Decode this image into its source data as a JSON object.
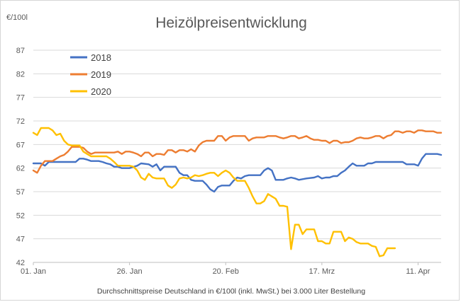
{
  "chart_data": {
    "type": "line",
    "title": "Heizölpreisentwicklung",
    "ylabel": "€/100l",
    "xlabel": "Durchschnittspreise Deutschland in €/100l (inkl. MwSt.) bei 3.000 Liter Bestellung",
    "ylim": [
      42,
      87
    ],
    "yticks": [
      42,
      47,
      52,
      57,
      62,
      67,
      72,
      77,
      82,
      87
    ],
    "xlim": [
      1,
      107
    ],
    "xticks": [
      {
        "day": 1,
        "label": "01. Jan"
      },
      {
        "day": 26,
        "label": "26. Jan"
      },
      {
        "day": 51,
        "label": "20. Feb"
      },
      {
        "day": 76,
        "label": "17. Mrz"
      },
      {
        "day": 101,
        "label": "11. Apr"
      }
    ],
    "x_unit": "day of year",
    "grid": "horizontal",
    "legend_position": "top-left",
    "series": [
      {
        "name": "2018",
        "color": "#4472c4",
        "points": [
          [
            1,
            63
          ],
          [
            3,
            63
          ],
          [
            4,
            62.5
          ],
          [
            5,
            63.3
          ],
          [
            8,
            63.3
          ],
          [
            11,
            63.3
          ],
          [
            12,
            63.3
          ],
          [
            13,
            64
          ],
          [
            14,
            64
          ],
          [
            15,
            63.8
          ],
          [
            16,
            63.5
          ],
          [
            18,
            63.5
          ],
          [
            19,
            63.3
          ],
          [
            20,
            63
          ],
          [
            21,
            62.8
          ],
          [
            22,
            62.3
          ],
          [
            23,
            62.3
          ],
          [
            24,
            62
          ],
          [
            26,
            62
          ],
          [
            28,
            62.5
          ],
          [
            29,
            63
          ],
          [
            31,
            62.8
          ],
          [
            32,
            62.3
          ],
          [
            33,
            62.8
          ],
          [
            34,
            61.5
          ],
          [
            35,
            62.3
          ],
          [
            37,
            62.3
          ],
          [
            38,
            62.3
          ],
          [
            39,
            61
          ],
          [
            40,
            60.5
          ],
          [
            41,
            60.5
          ],
          [
            42,
            59.5
          ],
          [
            43,
            59.3
          ],
          [
            45,
            59.3
          ],
          [
            46,
            58.5
          ],
          [
            47,
            57.5
          ],
          [
            48,
            57
          ],
          [
            49,
            58
          ],
          [
            50,
            58.3
          ],
          [
            52,
            58.3
          ],
          [
            53,
            59.3
          ],
          [
            54,
            60
          ],
          [
            55,
            59.8
          ],
          [
            56,
            60.3
          ],
          [
            57,
            60.5
          ],
          [
            58,
            60.5
          ],
          [
            60,
            60.5
          ],
          [
            61,
            61.5
          ],
          [
            62,
            62
          ],
          [
            63,
            61.5
          ],
          [
            64,
            59.5
          ],
          [
            66,
            59.5
          ],
          [
            67,
            59.8
          ],
          [
            68,
            60
          ],
          [
            69,
            59.8
          ],
          [
            70,
            59.5
          ],
          [
            72,
            59.8
          ],
          [
            74,
            60
          ],
          [
            75,
            60.3
          ],
          [
            76,
            59.8
          ],
          [
            77,
            60
          ],
          [
            78,
            60
          ],
          [
            79,
            60.3
          ],
          [
            80,
            60.3
          ],
          [
            81,
            61
          ],
          [
            82,
            61.5
          ],
          [
            83,
            62.3
          ],
          [
            84,
            63
          ],
          [
            85,
            62.5
          ],
          [
            87,
            62.5
          ],
          [
            88,
            63
          ],
          [
            89,
            63
          ],
          [
            90,
            63.3
          ],
          [
            97,
            63.3
          ],
          [
            98,
            62.8
          ],
          [
            100,
            62.8
          ],
          [
            101,
            62.5
          ],
          [
            102,
            64
          ],
          [
            103,
            65
          ],
          [
            106,
            65
          ],
          [
            107,
            64.8
          ]
        ]
      },
      {
        "name": "2019",
        "color": "#ed7d31",
        "points": [
          [
            1,
            61.5
          ],
          [
            2,
            61
          ],
          [
            3,
            62.5
          ],
          [
            4,
            63.5
          ],
          [
            5,
            63.5
          ],
          [
            6,
            63.5
          ],
          [
            7,
            64
          ],
          [
            8,
            64.5
          ],
          [
            9,
            64.8
          ],
          [
            10,
            65.5
          ],
          [
            11,
            66.5
          ],
          [
            12,
            66.5
          ],
          [
            13,
            66.5
          ],
          [
            14,
            66.3
          ],
          [
            15,
            65.5
          ],
          [
            16,
            65
          ],
          [
            17,
            65.3
          ],
          [
            18,
            65.3
          ],
          [
            19,
            65.3
          ],
          [
            20,
            65.3
          ],
          [
            21,
            65.3
          ],
          [
            22,
            65.3
          ],
          [
            23,
            65.5
          ],
          [
            24,
            65
          ],
          [
            25,
            65.5
          ],
          [
            26,
            65.5
          ],
          [
            27,
            65.3
          ],
          [
            28,
            65
          ],
          [
            29,
            64.5
          ],
          [
            30,
            65.3
          ],
          [
            31,
            65.3
          ],
          [
            32,
            64.5
          ],
          [
            33,
            65
          ],
          [
            34,
            65
          ],
          [
            35,
            64.8
          ],
          [
            36,
            65.8
          ],
          [
            37,
            65.8
          ],
          [
            38,
            65.3
          ],
          [
            39,
            65.8
          ],
          [
            40,
            65.8
          ],
          [
            41,
            65.5
          ],
          [
            42,
            66
          ],
          [
            43,
            65.5
          ],
          [
            44,
            66.8
          ],
          [
            45,
            67.5
          ],
          [
            46,
            67.8
          ],
          [
            48,
            67.8
          ],
          [
            49,
            68.8
          ],
          [
            50,
            68.8
          ],
          [
            51,
            67.8
          ],
          [
            52,
            68.5
          ],
          [
            53,
            68.8
          ],
          [
            54,
            68.8
          ],
          [
            55,
            68.8
          ],
          [
            56,
            68.8
          ],
          [
            57,
            67.8
          ],
          [
            58,
            68.3
          ],
          [
            59,
            68.5
          ],
          [
            60,
            68.5
          ],
          [
            61,
            68.5
          ],
          [
            62,
            68.8
          ],
          [
            63,
            68.8
          ],
          [
            64,
            68.8
          ],
          [
            65,
            68.5
          ],
          [
            66,
            68.3
          ],
          [
            67,
            68.5
          ],
          [
            68,
            68.8
          ],
          [
            69,
            68.8
          ],
          [
            70,
            68.3
          ],
          [
            71,
            68.5
          ],
          [
            72,
            68.8
          ],
          [
            73,
            68.3
          ],
          [
            74,
            68
          ],
          [
            75,
            68
          ],
          [
            76,
            67.8
          ],
          [
            77,
            67.8
          ],
          [
            78,
            67.3
          ],
          [
            79,
            67.8
          ],
          [
            80,
            67.8
          ],
          [
            81,
            67.3
          ],
          [
            82,
            67.5
          ],
          [
            83,
            67.5
          ],
          [
            84,
            67.8
          ],
          [
            85,
            68.3
          ],
          [
            86,
            68.5
          ],
          [
            87,
            68.3
          ],
          [
            88,
            68.3
          ],
          [
            89,
            68.5
          ],
          [
            90,
            68.8
          ],
          [
            91,
            68.8
          ],
          [
            92,
            68.3
          ],
          [
            93,
            68.8
          ],
          [
            94,
            69
          ],
          [
            95,
            69.8
          ],
          [
            96,
            69.8
          ],
          [
            97,
            69.5
          ],
          [
            98,
            69.8
          ],
          [
            99,
            69.8
          ],
          [
            100,
            69.5
          ],
          [
            101,
            70
          ],
          [
            102,
            70
          ],
          [
            103,
            69.8
          ],
          [
            104,
            69.8
          ],
          [
            105,
            69.8
          ],
          [
            106,
            69.5
          ],
          [
            107,
            69.5
          ]
        ]
      },
      {
        "name": "2020",
        "color": "#ffc000",
        "points": [
          [
            1,
            69.5
          ],
          [
            2,
            69
          ],
          [
            3,
            70.5
          ],
          [
            4,
            70.5
          ],
          [
            5,
            70.5
          ],
          [
            6,
            70
          ],
          [
            7,
            69
          ],
          [
            8,
            69.3
          ],
          [
            9,
            67.8
          ],
          [
            10,
            67
          ],
          [
            11,
            66.8
          ],
          [
            12,
            66.8
          ],
          [
            13,
            66.8
          ],
          [
            14,
            65.5
          ],
          [
            15,
            65
          ],
          [
            16,
            64.5
          ],
          [
            17,
            64.5
          ],
          [
            18,
            64.5
          ],
          [
            19,
            64.5
          ],
          [
            20,
            64.5
          ],
          [
            21,
            64
          ],
          [
            22,
            63.3
          ],
          [
            23,
            62.5
          ],
          [
            24,
            62.5
          ],
          [
            25,
            62.5
          ],
          [
            26,
            62.5
          ],
          [
            27,
            62.3
          ],
          [
            28,
            61.5
          ],
          [
            29,
            60
          ],
          [
            30,
            59.5
          ],
          [
            31,
            60.8
          ],
          [
            32,
            60
          ],
          [
            33,
            59.8
          ],
          [
            34,
            59.8
          ],
          [
            35,
            59.8
          ],
          [
            36,
            58.3
          ],
          [
            37,
            57.8
          ],
          [
            38,
            58.5
          ],
          [
            39,
            59.8
          ],
          [
            40,
            60
          ],
          [
            41,
            59.8
          ],
          [
            42,
            60
          ],
          [
            43,
            60.5
          ],
          [
            44,
            60.3
          ],
          [
            45,
            60.5
          ],
          [
            46,
            60.8
          ],
          [
            47,
            61
          ],
          [
            48,
            61
          ],
          [
            49,
            60.3
          ],
          [
            50,
            61
          ],
          [
            51,
            61.5
          ],
          [
            52,
            61
          ],
          [
            53,
            60
          ],
          [
            54,
            59.3
          ],
          [
            55,
            59.3
          ],
          [
            56,
            59.3
          ],
          [
            57,
            57.8
          ],
          [
            58,
            56
          ],
          [
            59,
            54.5
          ],
          [
            60,
            54.5
          ],
          [
            61,
            55
          ],
          [
            62,
            56.5
          ],
          [
            63,
            56
          ],
          [
            64,
            55.5
          ],
          [
            65,
            54
          ],
          [
            66,
            54
          ],
          [
            67,
            53.8
          ],
          [
            68,
            44.8
          ],
          [
            69,
            50
          ],
          [
            70,
            50
          ],
          [
            71,
            48
          ],
          [
            72,
            49
          ],
          [
            73,
            49
          ],
          [
            74,
            49
          ],
          [
            75,
            46.5
          ],
          [
            76,
            46.5
          ],
          [
            77,
            46
          ],
          [
            78,
            46
          ],
          [
            79,
            48.5
          ],
          [
            80,
            48.5
          ],
          [
            81,
            48.5
          ],
          [
            82,
            46.5
          ],
          [
            83,
            47.3
          ],
          [
            84,
            47
          ],
          [
            85,
            46.3
          ],
          [
            86,
            46
          ],
          [
            87,
            46
          ],
          [
            88,
            46
          ],
          [
            89,
            45.5
          ],
          [
            90,
            45.3
          ],
          [
            91,
            43.3
          ],
          [
            92,
            43.5
          ],
          [
            93,
            45
          ],
          [
            94,
            45
          ],
          [
            95,
            45
          ]
        ]
      }
    ]
  }
}
